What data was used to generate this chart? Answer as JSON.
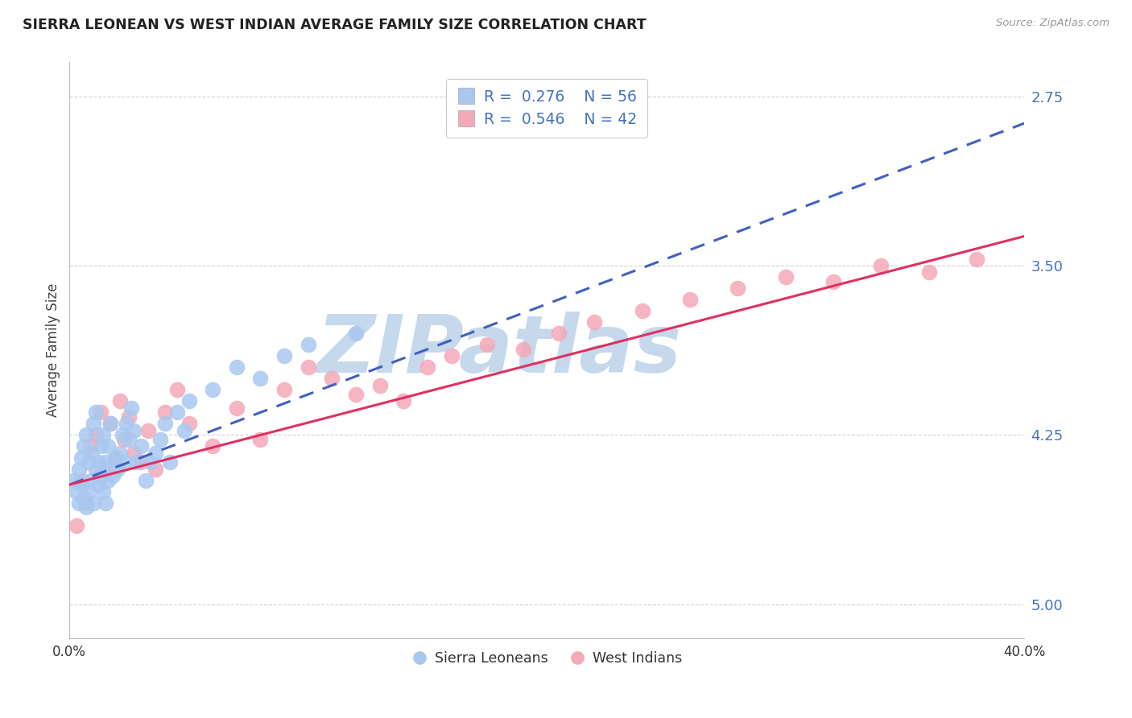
{
  "title": "SIERRA LEONEAN VS WEST INDIAN AVERAGE FAMILY SIZE CORRELATION CHART",
  "source_text": "Source: ZipAtlas.com",
  "ylabel": "Average Family Size",
  "xlim": [
    0.0,
    0.4
  ],
  "ylim": [
    2.6,
    5.15
  ],
  "yticks": [
    2.75,
    3.5,
    4.25,
    5.0
  ],
  "ytick_labels_right": [
    "5.00",
    "4.25",
    "3.50",
    "2.75"
  ],
  "blue_color": "#A8C8F0",
  "pink_color": "#F5A8B8",
  "blue_line_color": "#4060C0",
  "pink_line_color": "#E03060",
  "grid_color": "#D0D0D0",
  "watermark": "ZIPatlas",
  "watermark_color": "#C5D8EC",
  "title_color": "#222222",
  "axis_label_color": "#444444",
  "tick_color_right": "#4472C4",
  "legend_text_color": "#4472C4",
  "legend_label1": "Sierra Leoneans",
  "legend_label2": "West Indians",
  "bottom_legend_color_text": "#333333",
  "figsize": [
    14.06,
    8.92
  ],
  "dpi": 100,
  "sierra_x": [
    0.002,
    0.003,
    0.004,
    0.004,
    0.005,
    0.005,
    0.006,
    0.006,
    0.007,
    0.007,
    0.008,
    0.008,
    0.009,
    0.009,
    0.01,
    0.01,
    0.011,
    0.011,
    0.012,
    0.012,
    0.013,
    0.013,
    0.014,
    0.014,
    0.015,
    0.015,
    0.016,
    0.016,
    0.017,
    0.018,
    0.019,
    0.02,
    0.021,
    0.022,
    0.023,
    0.024,
    0.025,
    0.026,
    0.027,
    0.028,
    0.03,
    0.032,
    0.034,
    0.036,
    0.038,
    0.04,
    0.042,
    0.045,
    0.048,
    0.05,
    0.06,
    0.07,
    0.08,
    0.09,
    0.1,
    0.12
  ],
  "sierra_y": [
    3.3,
    3.25,
    3.2,
    3.35,
    3.28,
    3.4,
    3.22,
    3.45,
    3.18,
    3.5,
    3.25,
    3.38,
    3.3,
    3.42,
    3.2,
    3.55,
    3.35,
    3.6,
    3.28,
    3.38,
    3.45,
    3.32,
    3.5,
    3.25,
    3.38,
    3.2,
    3.45,
    3.3,
    3.55,
    3.32,
    3.4,
    3.35,
    3.42,
    3.5,
    3.38,
    3.55,
    3.48,
    3.62,
    3.52,
    3.38,
    3.45,
    3.3,
    3.38,
    3.42,
    3.48,
    3.55,
    3.38,
    3.6,
    3.52,
    3.65,
    3.7,
    3.8,
    3.75,
    3.85,
    3.9,
    3.95
  ],
  "westindian_x": [
    0.003,
    0.005,
    0.007,
    0.009,
    0.011,
    0.013,
    0.015,
    0.017,
    0.019,
    0.021,
    0.023,
    0.025,
    0.027,
    0.03,
    0.033,
    0.036,
    0.04,
    0.045,
    0.05,
    0.06,
    0.07,
    0.08,
    0.09,
    0.1,
    0.11,
    0.12,
    0.13,
    0.14,
    0.15,
    0.16,
    0.175,
    0.19,
    0.205,
    0.22,
    0.24,
    0.26,
    0.28,
    0.3,
    0.32,
    0.34,
    0.36,
    0.38
  ],
  "westindian_y": [
    3.1,
    3.3,
    3.2,
    3.45,
    3.5,
    3.6,
    3.35,
    3.55,
    3.4,
    3.65,
    3.48,
    3.58,
    3.42,
    3.38,
    3.52,
    3.35,
    3.6,
    3.7,
    3.55,
    3.45,
    3.62,
    3.48,
    3.7,
    3.8,
    3.75,
    3.68,
    3.72,
    3.65,
    3.8,
    3.85,
    3.9,
    3.88,
    3.95,
    4.0,
    4.05,
    4.1,
    4.15,
    4.2,
    4.18,
    4.25,
    4.22,
    4.28
  ],
  "blue_trendline_x0": 0.0,
  "blue_trendline_y0": 3.28,
  "blue_trendline_x1": 0.4,
  "blue_trendline_y1": 4.88,
  "pink_trendline_x0": 0.0,
  "pink_trendline_y0": 3.28,
  "pink_trendline_x1": 0.4,
  "pink_trendline_y1": 4.38
}
